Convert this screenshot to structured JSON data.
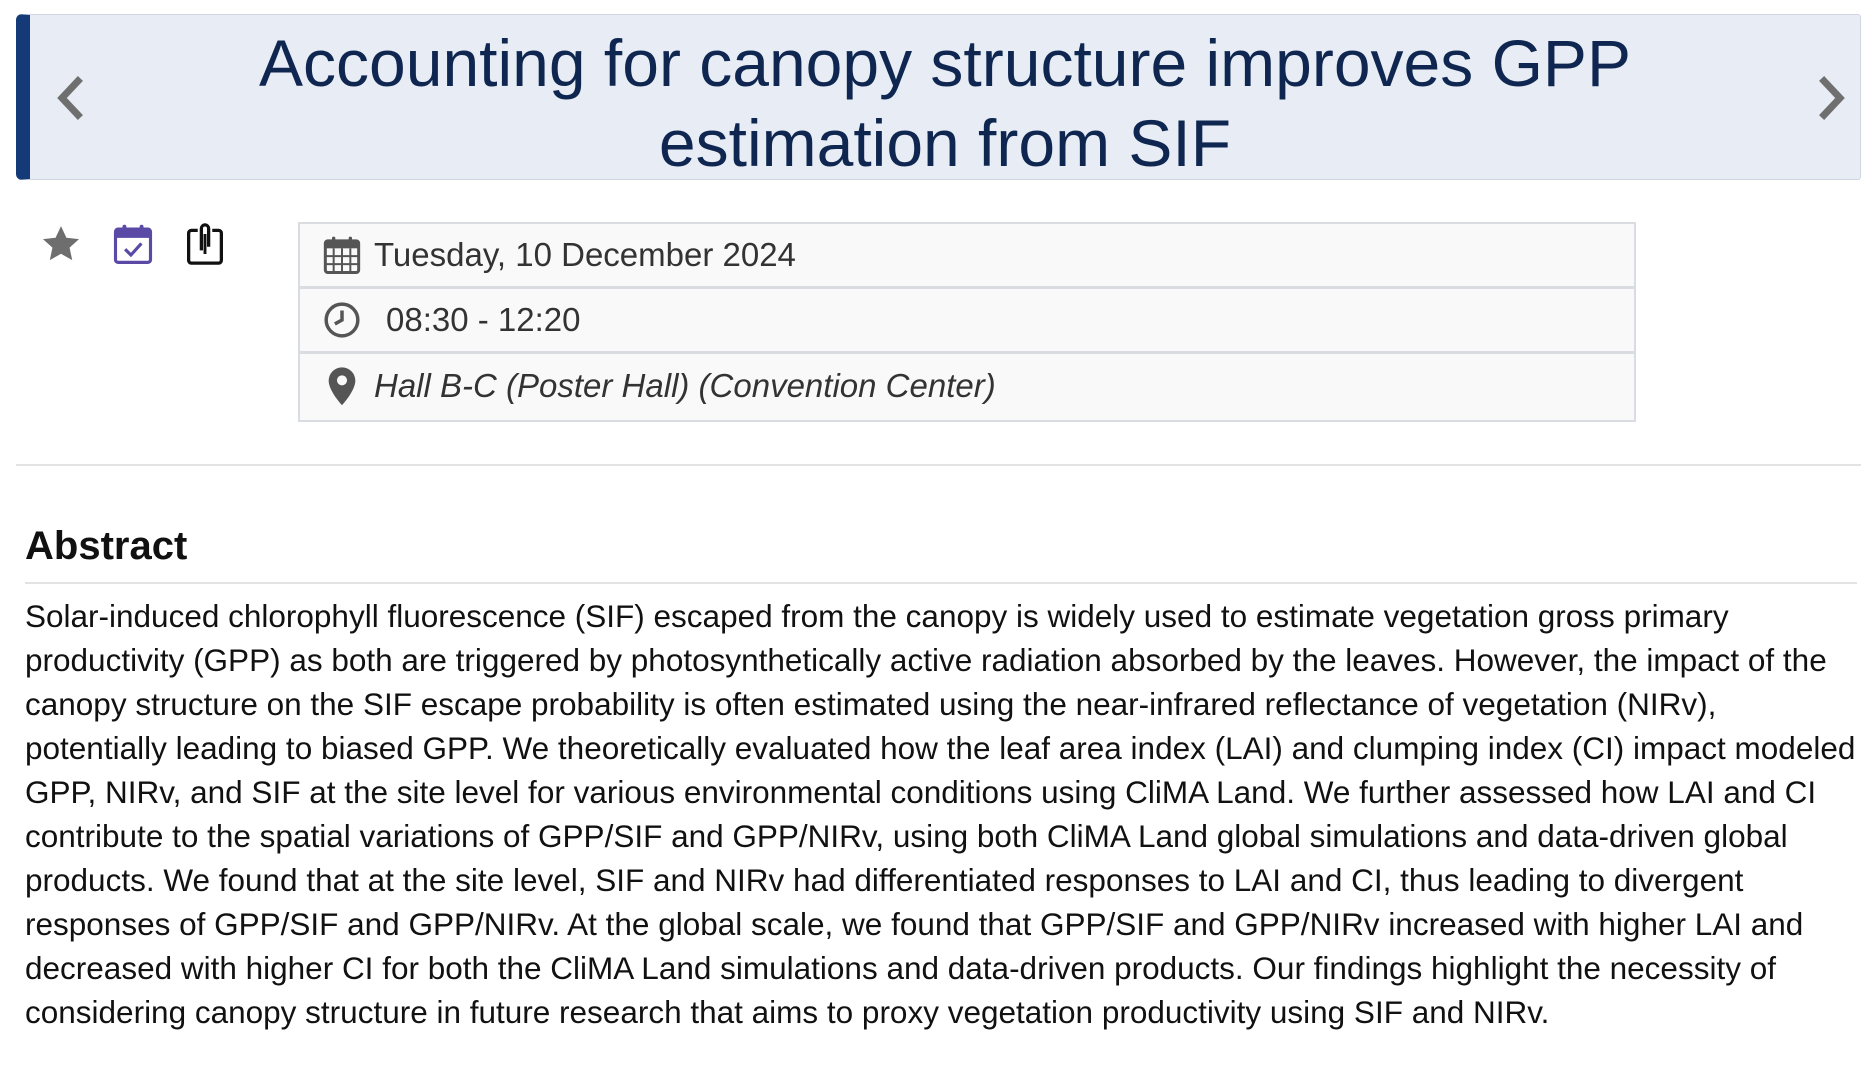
{
  "header": {
    "title": "Accounting for canopy structure improves GPP estimation from SIF",
    "prev_icon": "chevron-left-icon",
    "next_icon": "chevron-right-icon"
  },
  "actions": [
    {
      "name": "favorite",
      "icon": "star-icon",
      "color": "#6e6e6e"
    },
    {
      "name": "add-to-calendar",
      "icon": "calendar-check-icon",
      "color": "#5a4aa5"
    },
    {
      "name": "share",
      "icon": "share-clipboard-icon",
      "color": "#111111"
    }
  ],
  "session": {
    "date": "Tuesday, 10 December 2024",
    "time": "08:30 - 12:20",
    "location": "Hall B-C (Poster Hall) (Convention Center)"
  },
  "abstract": {
    "heading": "Abstract",
    "body": "Solar-induced chlorophyll fluorescence (SIF) escaped from the canopy is widely used to estimate vegetation gross primary productivity (GPP) as both are triggered by photosynthetically active radiation absorbed by the leaves. However, the impact of the canopy structure on the SIF escape probability is often estimated using the near-infrared reflectance of vegetation (NIRv), potentially leading to biased GPP. We theoretically evaluated how the leaf area index (LAI) and clumping index (CI) impact modeled GPP, NIRv, and SIF at the site level for various environmental conditions using CliMA Land. We further assessed how LAI and CI contribute to the spatial variations of GPP/SIF and GPP/NIRv, using both CliMA Land global simulations and data-driven global products. We found that at the site level, SIF and NIRv had differentiated responses to LAI and CI, thus leading to divergent responses of GPP/SIF and GPP/NIRv. At the global scale, we found that GPP/SIF and GPP/NIRv increased with higher LAI and decreased with higher CI for both the CliMA Land simulations and data-driven products. Our findings highlight the necessity of considering canopy structure in future research that aims to proxy vegetation productivity using SIF and NIRv."
  },
  "colors": {
    "banner_bg": "#e7ecf5",
    "banner_accent": "#143a78",
    "title_text": "#0f2750",
    "meta_bg": "#f9f9f9"
  }
}
